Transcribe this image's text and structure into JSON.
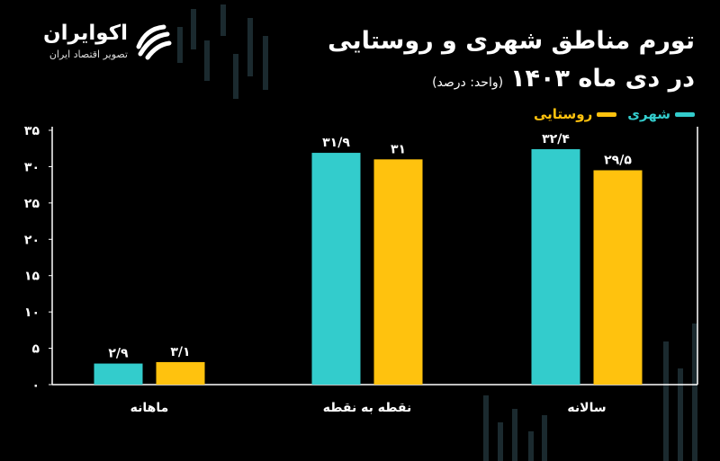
{
  "brand": {
    "name": "اکوایران",
    "tagline": "تصویر اقتصاد ایران"
  },
  "colors": {
    "urban": "#33CCCC",
    "rural": "#FFC20E",
    "background": "#000000",
    "axis": "#FFFFFF"
  },
  "chart_data": {
    "type": "bar",
    "title": "تورم مناطق شهری و روستایی",
    "subtitle": "در دی ماه ۱۴۰۳",
    "unit_label": "(واحد: درصد)",
    "categories": [
      "ماهانه",
      "نقطه به نقطه",
      "سالانه"
    ],
    "series": [
      {
        "name": "شهری",
        "color": "#33CCCC",
        "values": [
          2.9,
          31.9,
          32.4
        ],
        "labels": [
          "۲/۹",
          "۳۱/۹",
          "۳۲/۴"
        ]
      },
      {
        "name": "روستایی",
        "color": "#FFC20E",
        "values": [
          3.1,
          31,
          29.5
        ],
        "labels": [
          "۳/۱",
          "۳۱",
          "۲۹/۵"
        ]
      }
    ],
    "ylim": [
      0,
      35
    ],
    "yticks": [
      0,
      5,
      10,
      15,
      20,
      25,
      30,
      35
    ],
    "ytick_labels": [
      "۰",
      "۵",
      "۱۰",
      "۱۵",
      "۲۰",
      "۲۵",
      "۳۰",
      "۳۵"
    ],
    "grid": false,
    "legend_position": "top-right"
  }
}
